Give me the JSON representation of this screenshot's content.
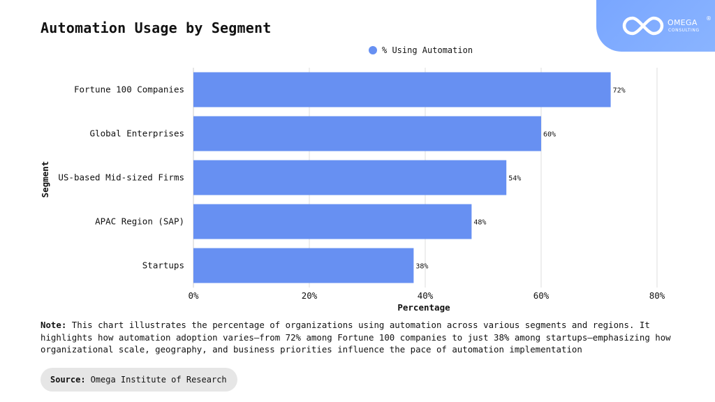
{
  "page": {
    "title": "Automation Usage by Segment",
    "note_label": "Note:",
    "note_text": "This chart illustrates the percentage of organizations using automation across various segments and regions. It highlights how automation adoption varies—from 72% among Fortune 100 companies to just 38% among startups—emphasizing how organizational scale, geography, and business priorities influence the pace of automation implementation",
    "source_label": "Source:",
    "source_text": "Omega Institute of Research"
  },
  "logo": {
    "name": "OMEGA",
    "registered_mark": "®",
    "tagline": "CONSULTING",
    "icon": "infinity-logo-icon",
    "background_color": "#7faaff"
  },
  "chart_data": {
    "type": "bar",
    "orientation": "horizontal",
    "title": "Automation Usage by Segment",
    "xlabel": "Percentage",
    "ylabel": "Segment",
    "categories": [
      "Fortune 100 Companies",
      "Global Enterprises",
      "US-based Mid-sized Firms",
      "APAC Region (SAP)",
      "Startups"
    ],
    "series": [
      {
        "name": "% Using Automation",
        "values": [
          72,
          60,
          54,
          48,
          38
        ],
        "data_labels": [
          "72%",
          "60%",
          "54%",
          "48%",
          "38%"
        ],
        "color": "#6790f2"
      }
    ],
    "xlim": [
      0,
      80
    ],
    "xticks": [
      0,
      20,
      40,
      60,
      80
    ],
    "xtick_labels": [
      "0%",
      "20%",
      "40%",
      "60%",
      "80%"
    ],
    "grid": "vertical",
    "legend_position": "top-center"
  }
}
